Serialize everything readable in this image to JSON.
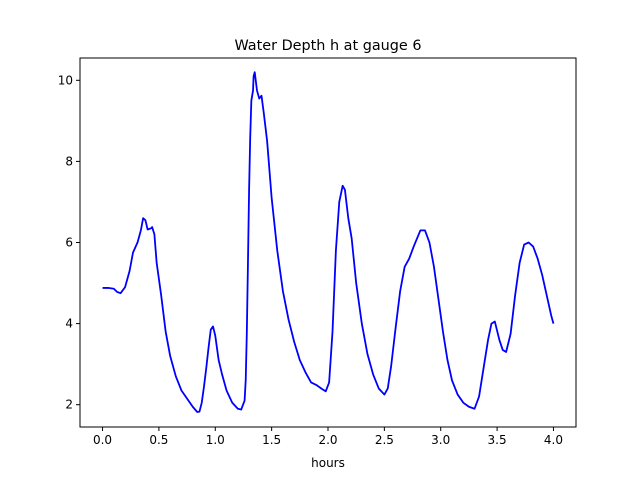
{
  "chart_data": {
    "type": "line",
    "title": "Water Depth h at gauge 6",
    "xlabel": "hours",
    "ylabel": "",
    "xlim": [
      -0.2,
      4.2
    ],
    "ylim": [
      1.45,
      10.55
    ],
    "x_ticks": [
      0.0,
      0.5,
      1.0,
      1.5,
      2.0,
      2.5,
      3.0,
      3.5,
      4.0
    ],
    "x_tick_labels": [
      "0.0",
      "0.5",
      "1.0",
      "1.5",
      "2.0",
      "2.5",
      "3.0",
      "3.5",
      "4.0"
    ],
    "y_ticks": [
      2,
      4,
      6,
      8,
      10
    ],
    "y_tick_labels": [
      "2",
      "4",
      "6",
      "8",
      "10"
    ],
    "grid": false,
    "legend": "none",
    "series": [
      {
        "color": "#0000ff",
        "points": [
          [
            0.0,
            4.88
          ],
          [
            0.05,
            4.88
          ],
          [
            0.1,
            4.86
          ],
          [
            0.13,
            4.78
          ],
          [
            0.16,
            4.75
          ],
          [
            0.2,
            4.9
          ],
          [
            0.24,
            5.3
          ],
          [
            0.27,
            5.75
          ],
          [
            0.31,
            6.0
          ],
          [
            0.34,
            6.3
          ],
          [
            0.36,
            6.6
          ],
          [
            0.38,
            6.55
          ],
          [
            0.4,
            6.32
          ],
          [
            0.43,
            6.35
          ],
          [
            0.44,
            6.38
          ],
          [
            0.46,
            6.2
          ],
          [
            0.48,
            5.5
          ],
          [
            0.52,
            4.7
          ],
          [
            0.56,
            3.8
          ],
          [
            0.6,
            3.2
          ],
          [
            0.65,
            2.7
          ],
          [
            0.7,
            2.35
          ],
          [
            0.75,
            2.15
          ],
          [
            0.8,
            1.95
          ],
          [
            0.84,
            1.82
          ],
          [
            0.86,
            1.83
          ],
          [
            0.88,
            2.05
          ],
          [
            0.9,
            2.45
          ],
          [
            0.92,
            2.9
          ],
          [
            0.94,
            3.4
          ],
          [
            0.96,
            3.85
          ],
          [
            0.98,
            3.93
          ],
          [
            1.0,
            3.7
          ],
          [
            1.03,
            3.1
          ],
          [
            1.06,
            2.75
          ],
          [
            1.1,
            2.35
          ],
          [
            1.15,
            2.05
          ],
          [
            1.2,
            1.9
          ],
          [
            1.23,
            1.88
          ],
          [
            1.26,
            2.1
          ],
          [
            1.27,
            2.6
          ],
          [
            1.28,
            3.8
          ],
          [
            1.29,
            5.5
          ],
          [
            1.3,
            7.3
          ],
          [
            1.31,
            8.6
          ],
          [
            1.32,
            9.5
          ],
          [
            1.335,
            9.75
          ],
          [
            1.34,
            10.1
          ],
          [
            1.35,
            10.2
          ],
          [
            1.37,
            9.75
          ],
          [
            1.39,
            9.55
          ],
          [
            1.41,
            9.62
          ],
          [
            1.43,
            9.2
          ],
          [
            1.46,
            8.5
          ],
          [
            1.5,
            7.1
          ],
          [
            1.55,
            5.8
          ],
          [
            1.6,
            4.8
          ],
          [
            1.65,
            4.1
          ],
          [
            1.7,
            3.55
          ],
          [
            1.75,
            3.1
          ],
          [
            1.8,
            2.8
          ],
          [
            1.85,
            2.55
          ],
          [
            1.9,
            2.48
          ],
          [
            1.95,
            2.38
          ],
          [
            1.98,
            2.33
          ],
          [
            2.01,
            2.55
          ],
          [
            2.04,
            3.8
          ],
          [
            2.07,
            5.8
          ],
          [
            2.1,
            7.0
          ],
          [
            2.13,
            7.4
          ],
          [
            2.15,
            7.3
          ],
          [
            2.18,
            6.6
          ],
          [
            2.21,
            6.1
          ],
          [
            2.25,
            5.0
          ],
          [
            2.3,
            4.0
          ],
          [
            2.35,
            3.25
          ],
          [
            2.4,
            2.75
          ],
          [
            2.45,
            2.4
          ],
          [
            2.5,
            2.25
          ],
          [
            2.53,
            2.4
          ],
          [
            2.56,
            2.95
          ],
          [
            2.6,
            3.9
          ],
          [
            2.64,
            4.8
          ],
          [
            2.68,
            5.4
          ],
          [
            2.72,
            5.6
          ],
          [
            2.76,
            5.9
          ],
          [
            2.79,
            6.1
          ],
          [
            2.82,
            6.3
          ],
          [
            2.86,
            6.3
          ],
          [
            2.9,
            6.0
          ],
          [
            2.94,
            5.4
          ],
          [
            2.98,
            4.6
          ],
          [
            3.02,
            3.8
          ],
          [
            3.06,
            3.1
          ],
          [
            3.1,
            2.6
          ],
          [
            3.15,
            2.25
          ],
          [
            3.2,
            2.05
          ],
          [
            3.25,
            1.95
          ],
          [
            3.3,
            1.9
          ],
          [
            3.34,
            2.2
          ],
          [
            3.38,
            2.9
          ],
          [
            3.42,
            3.6
          ],
          [
            3.45,
            4.0
          ],
          [
            3.48,
            4.05
          ],
          [
            3.52,
            3.6
          ],
          [
            3.55,
            3.35
          ],
          [
            3.58,
            3.3
          ],
          [
            3.62,
            3.75
          ],
          [
            3.66,
            4.7
          ],
          [
            3.7,
            5.5
          ],
          [
            3.74,
            5.95
          ],
          [
            3.78,
            6.0
          ],
          [
            3.82,
            5.9
          ],
          [
            3.86,
            5.6
          ],
          [
            3.9,
            5.2
          ],
          [
            3.94,
            4.7
          ],
          [
            3.98,
            4.2
          ],
          [
            4.0,
            4.0
          ]
        ]
      }
    ]
  }
}
